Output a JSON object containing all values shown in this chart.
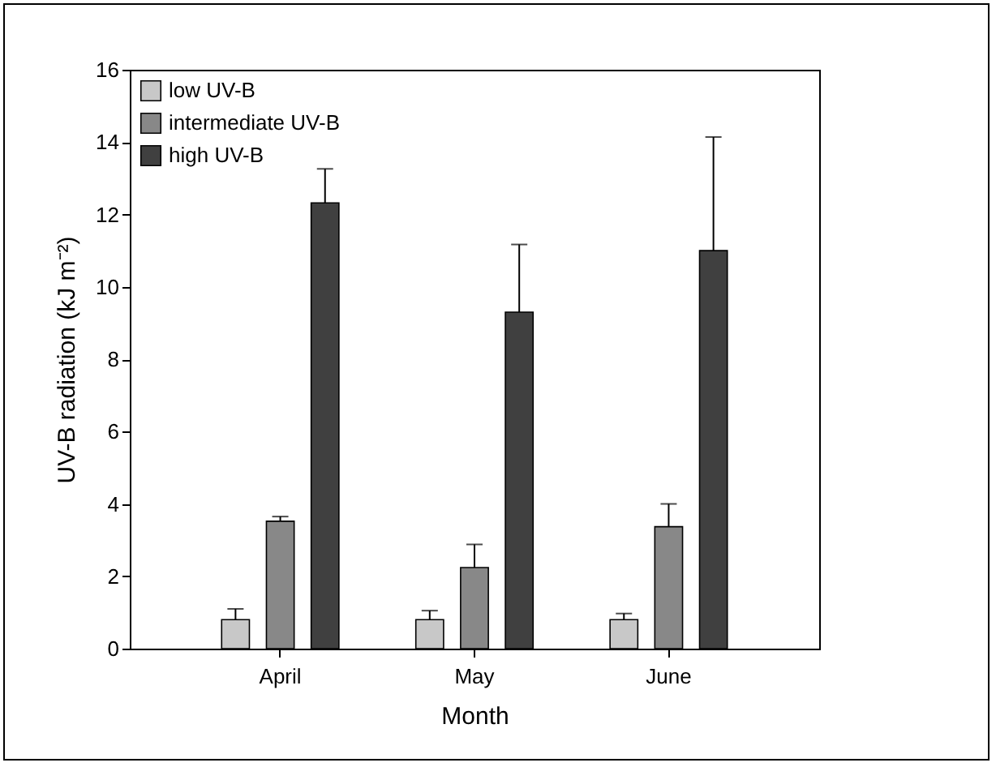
{
  "chart_data": {
    "type": "bar",
    "xlabel": "Month",
    "ylabel": "UV-B radiation (kJ m⁻²)",
    "categories": [
      "April",
      "May",
      "June"
    ],
    "series": [
      {
        "name": "low UV-B",
        "color": "#c8c8c8",
        "values": [
          0.8,
          0.8,
          0.8
        ],
        "errors": [
          [
            0.8,
            1.1
          ],
          [
            0.8,
            1.05
          ],
          [
            0.8,
            0.97
          ]
        ]
      },
      {
        "name": "intermediate UV-B",
        "color": "#888888",
        "values": [
          3.52,
          2.24,
          3.37
        ],
        "errors": [
          [
            3.52,
            3.65
          ],
          [
            2.24,
            2.88
          ],
          [
            3.37,
            4.0
          ]
        ]
      },
      {
        "name": "high UV-B",
        "color": "#404040",
        "values": [
          12.32,
          9.3,
          11.0
        ],
        "errors": [
          [
            12.32,
            13.26
          ],
          [
            9.3,
            11.17
          ],
          [
            11.0,
            14.14
          ]
        ]
      }
    ],
    "ylim": [
      0,
      16
    ],
    "yticks": [
      0,
      2,
      4,
      6,
      8,
      10,
      12,
      14,
      16
    ],
    "legend": "top left"
  }
}
